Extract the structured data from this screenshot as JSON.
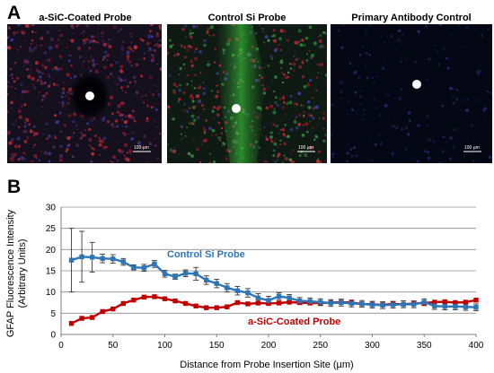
{
  "panels": {
    "a": {
      "letter": "A"
    },
    "b": {
      "letter": "B"
    }
  },
  "images": [
    {
      "title": "a-SiC-Coated Probe",
      "scale_label": "100 µm"
    },
    {
      "title": "Control Si Probe",
      "scale_label": "100 µm"
    },
    {
      "title": "Primary Antibody Control",
      "scale_label": "100 µm"
    }
  ],
  "chart_data": {
    "type": "line",
    "xlabel": "Distance from Probe Insertion Site (µm)",
    "ylabel_line1": "GFAP Fluorescence Intensity",
    "ylabel_line2": "(Arbitrary Units)",
    "xlim": [
      0,
      400
    ],
    "ylim": [
      0,
      30
    ],
    "xticks": [
      0,
      50,
      100,
      150,
      200,
      250,
      300,
      350,
      400
    ],
    "yticks": [
      0,
      5,
      10,
      15,
      20,
      25,
      30
    ],
    "grid": "horizontal",
    "x": [
      10,
      20,
      30,
      40,
      50,
      60,
      70,
      80,
      90,
      100,
      110,
      120,
      130,
      140,
      150,
      160,
      170,
      180,
      190,
      200,
      210,
      220,
      230,
      240,
      250,
      260,
      270,
      280,
      290,
      300,
      310,
      320,
      330,
      340,
      350,
      360,
      370,
      380,
      390,
      400
    ],
    "series": [
      {
        "name": "Control Si Probe",
        "color": "#2e75b6",
        "values": [
          17.5,
          18.3,
          18.2,
          17.9,
          17.8,
          17.1,
          15.8,
          15.7,
          16.6,
          14.3,
          13.6,
          14.4,
          14.3,
          12.8,
          12.0,
          11.0,
          10.3,
          9.8,
          8.6,
          8.0,
          9.0,
          8.6,
          7.9,
          7.8,
          7.6,
          7.4,
          7.5,
          7.3,
          7.2,
          7.0,
          6.9,
          7.0,
          7.1,
          7.1,
          7.6,
          6.7,
          6.6,
          6.6,
          6.5,
          6.4
        ],
        "errors": [
          7.5,
          6.0,
          3.5,
          1.0,
          1.0,
          0.8,
          0.6,
          0.8,
          0.8,
          0.8,
          0.6,
          0.8,
          1.5,
          1.0,
          1.0,
          1.0,
          1.0,
          1.0,
          1.0,
          1.0,
          0.8,
          0.8,
          0.8,
          0.8,
          0.8,
          0.8,
          0.8,
          0.8,
          0.8,
          0.8,
          0.8,
          0.8,
          0.8,
          0.8,
          0.8,
          0.8,
          0.8,
          0.8,
          0.8,
          0.8
        ]
      },
      {
        "name": "a-SiC-Coated Probe",
        "color": "#c00000",
        "values": [
          2.6,
          3.8,
          4.0,
          5.4,
          6.0,
          7.3,
          8.1,
          8.8,
          8.9,
          8.4,
          7.9,
          7.3,
          6.7,
          6.3,
          6.3,
          6.5,
          7.5,
          7.2,
          7.4,
          7.3,
          7.4,
          7.6,
          7.5,
          7.4,
          7.4,
          7.5,
          7.6,
          7.5,
          7.2,
          7.1,
          7.0,
          7.2,
          7.1,
          7.3,
          7.4,
          7.6,
          7.7,
          7.5,
          7.6,
          8.1
        ]
      }
    ],
    "annotations": [
      {
        "text": "Control Si Probe",
        "series": 0
      },
      {
        "text": "a-SiC-Coated Probe",
        "series": 1
      }
    ]
  }
}
